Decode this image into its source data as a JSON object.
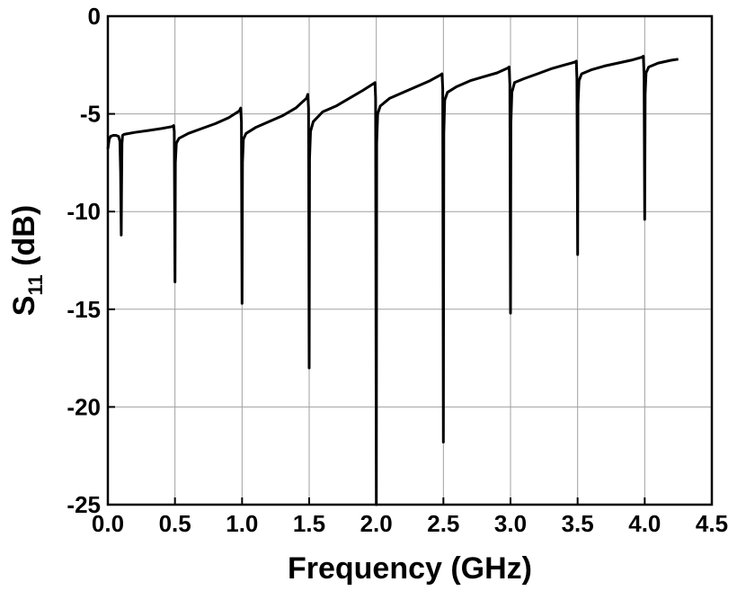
{
  "chart_data": {
    "type": "line",
    "title": "",
    "xlabel": "Frequency (GHz)",
    "ylabel": {
      "main": "S",
      "sub": "11",
      "rest": " (dB)"
    },
    "xlim": [
      0.0,
      4.5
    ],
    "ylim": [
      -25,
      0
    ],
    "xticks": [
      "0.0",
      "0.5",
      "1.0",
      "1.5",
      "2.0",
      "2.5",
      "3.0",
      "3.5",
      "4.0",
      "4.5"
    ],
    "yticks": [
      "0",
      "-5",
      "-10",
      "-15",
      "-20",
      "-25"
    ],
    "grid": true,
    "line_color": "#000000",
    "series": [
      {
        "x": [
          0.0,
          0.01,
          0.02,
          0.04,
          0.06,
          0.08,
          0.09,
          0.095,
          0.1,
          0.102,
          0.105,
          0.11,
          0.12,
          0.2,
          0.3,
          0.4,
          0.48,
          0.49,
          0.495,
          0.5,
          0.503,
          0.51,
          0.53,
          0.6,
          0.7,
          0.8,
          0.9,
          0.98,
          0.99,
          0.995,
          1.0,
          1.003,
          1.01,
          1.03,
          1.1,
          1.2,
          1.3,
          1.4,
          1.48,
          1.49,
          1.495,
          1.5,
          1.503,
          1.51,
          1.53,
          1.6,
          1.7,
          1.8,
          1.9,
          1.98,
          1.99,
          1.995,
          2.0,
          2.003,
          2.01,
          2.03,
          2.1,
          2.2,
          2.3,
          2.4,
          2.48,
          2.49,
          2.495,
          2.5,
          2.503,
          2.51,
          2.53,
          2.6,
          2.7,
          2.8,
          2.9,
          2.98,
          2.99,
          2.995,
          3.0,
          3.003,
          3.01,
          3.03,
          3.1,
          3.2,
          3.3,
          3.4,
          3.48,
          3.49,
          3.495,
          3.5,
          3.503,
          3.51,
          3.53,
          3.6,
          3.7,
          3.8,
          3.9,
          3.98,
          3.99,
          3.995,
          4.0,
          4.003,
          4.01,
          4.03,
          4.1,
          4.2,
          4.25
        ],
        "y": [
          -6.8,
          -6.3,
          -6.15,
          -6.1,
          -6.1,
          -6.15,
          -6.4,
          -8.0,
          -11.2,
          -9.0,
          -6.5,
          -6.1,
          -6.05,
          -5.95,
          -5.85,
          -5.75,
          -5.65,
          -5.6,
          -5.9,
          -13.6,
          -7.5,
          -6.5,
          -6.25,
          -6.0,
          -5.75,
          -5.5,
          -5.2,
          -4.85,
          -4.7,
          -5.4,
          -14.7,
          -7.5,
          -6.3,
          -6.0,
          -5.7,
          -5.4,
          -5.1,
          -4.7,
          -4.2,
          -4.0,
          -4.7,
          -18.0,
          -7.3,
          -5.9,
          -5.4,
          -4.9,
          -4.6,
          -4.2,
          -3.8,
          -3.45,
          -3.4,
          -4.2,
          -25.0,
          -6.5,
          -5.0,
          -4.6,
          -4.2,
          -3.9,
          -3.6,
          -3.3,
          -3.0,
          -2.95,
          -3.7,
          -21.8,
          -6.0,
          -4.3,
          -3.9,
          -3.6,
          -3.3,
          -3.1,
          -2.9,
          -2.65,
          -2.6,
          -3.5,
          -15.2,
          -5.5,
          -3.9,
          -3.4,
          -3.2,
          -2.95,
          -2.7,
          -2.5,
          -2.35,
          -2.3,
          -3.2,
          -12.2,
          -4.5,
          -3.3,
          -2.95,
          -2.75,
          -2.55,
          -2.4,
          -2.25,
          -2.1,
          -2.05,
          -3.0,
          -10.4,
          -4.0,
          -2.9,
          -2.6,
          -2.4,
          -2.25,
          -2.2
        ]
      }
    ]
  }
}
